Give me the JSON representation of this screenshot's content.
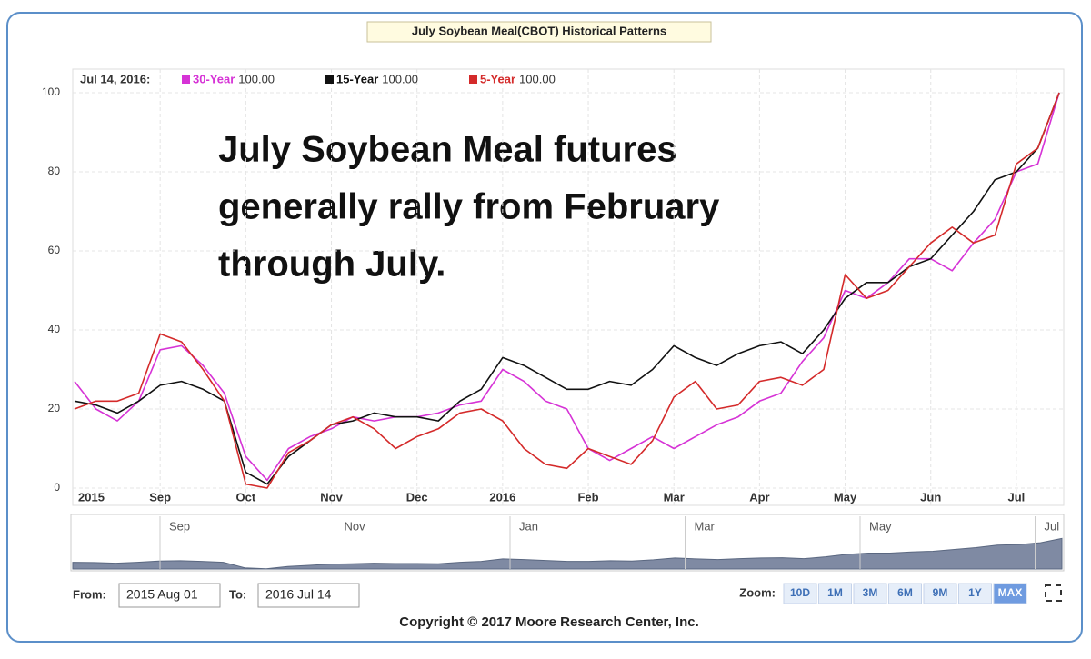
{
  "chart_data": {
    "type": "line",
    "title": "July Soybean Meal(CBOT) Historical Patterns",
    "legend_date": "Jul 14, 2016:",
    "annotation": [
      "July Soybean Meal futures",
      "generally rally from February",
      "through July."
    ],
    "categories": [
      "2015",
      null,
      null,
      null,
      "Sep",
      null,
      null,
      null,
      "Oct",
      null,
      null,
      null,
      "Nov",
      null,
      null,
      null,
      "Dec",
      null,
      null,
      null,
      "2016",
      null,
      null,
      null,
      "Feb",
      null,
      null,
      null,
      "Mar",
      null,
      null,
      null,
      "Apr",
      null,
      null,
      null,
      "May",
      null,
      null,
      null,
      "Jun",
      null,
      null,
      null,
      "Jul",
      null,
      null
    ],
    "series": [
      {
        "name": "30-Year",
        "legend_value": "100.00",
        "color": "#d633d6",
        "values": [
          27,
          20,
          17,
          22,
          35,
          36,
          31,
          24,
          8,
          2,
          10,
          13,
          15,
          18,
          17,
          18,
          18,
          19,
          21,
          22,
          30,
          27,
          22,
          20,
          10,
          7,
          10,
          13,
          10,
          13,
          16,
          18,
          22,
          24,
          32,
          38,
          50,
          48,
          52,
          58,
          58,
          55,
          62,
          68,
          80,
          82,
          100
        ]
      },
      {
        "name": "15-Year",
        "legend_value": "100.00",
        "color": "#111111",
        "values": [
          22,
          21,
          19,
          22,
          26,
          27,
          25,
          22,
          4,
          1,
          8,
          12,
          16,
          17,
          19,
          18,
          18,
          17,
          22,
          25,
          33,
          31,
          28,
          25,
          25,
          27,
          26,
          30,
          36,
          33,
          31,
          34,
          36,
          37,
          34,
          40,
          48,
          52,
          52,
          56,
          58,
          64,
          70,
          78,
          80,
          86,
          100
        ]
      },
      {
        "name": "5-Year",
        "legend_value": "100.00",
        "color": "#d42a2a",
        "values": [
          20,
          22,
          22,
          24,
          39,
          37,
          30,
          22,
          1,
          0,
          9,
          12,
          16,
          18,
          15,
          10,
          13,
          15,
          19,
          20,
          17,
          10,
          6,
          5,
          10,
          8,
          6,
          12,
          23,
          27,
          20,
          21,
          27,
          28,
          26,
          30,
          54,
          48,
          50,
          56,
          62,
          66,
          62,
          64,
          82,
          86,
          100
        ]
      }
    ],
    "ylim": [
      0,
      100
    ],
    "yticks": [
      0,
      20,
      40,
      60,
      80,
      100
    ],
    "grid": true,
    "navigator": {
      "labels": [
        "Sep",
        "Nov",
        "Jan",
        "Mar",
        "May",
        "Jul"
      ]
    },
    "range": {
      "from_label": "From:",
      "from": "2015 Aug 01",
      "to_label": "To:",
      "to": "2016 Jul 14"
    },
    "zoom": {
      "label": "Zoom:",
      "buttons": [
        "10D",
        "1M",
        "3M",
        "6M",
        "9M",
        "1Y",
        "MAX"
      ],
      "active": 6
    },
    "copyright": "Copyright © 2017 Moore Research Center, Inc."
  }
}
